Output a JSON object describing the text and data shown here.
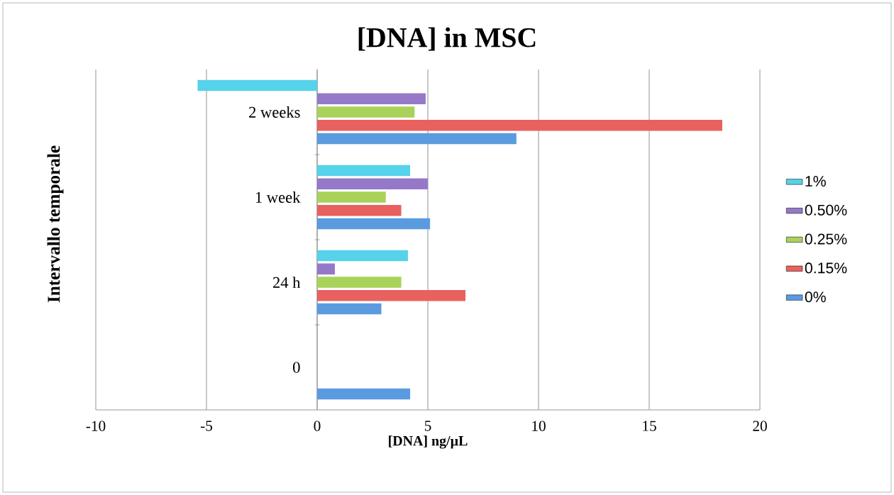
{
  "chart_data": {
    "type": "bar",
    "orientation": "horizontal",
    "title": "[DNA] in MSC",
    "xlabel": "[DNA] ng/µL",
    "ylabel": "Intervallo temporale",
    "categories": [
      "2 weeks",
      "1 week",
      "24 h",
      "0"
    ],
    "series": [
      {
        "name": "0%",
        "color": "#5a9be0",
        "values": [
          9.0,
          5.1,
          2.9,
          4.2
        ]
      },
      {
        "name": "0.15%",
        "color": "#e8615e",
        "values": [
          18.3,
          3.8,
          6.7,
          null
        ]
      },
      {
        "name": "0.25%",
        "color": "#a8d25a",
        "values": [
          4.4,
          3.1,
          3.8,
          null
        ]
      },
      {
        "name": "0.50%",
        "color": "#9678c8",
        "values": [
          4.9,
          5.0,
          0.8,
          null
        ]
      },
      {
        "name": "1%",
        "color": "#56d2ea",
        "values": [
          -5.4,
          4.2,
          4.1,
          null
        ]
      }
    ],
    "xlim": [
      -10,
      20
    ],
    "xticks": [
      -10,
      -5,
      0,
      5,
      10,
      15,
      20
    ],
    "grid": "x",
    "legend": "right"
  }
}
